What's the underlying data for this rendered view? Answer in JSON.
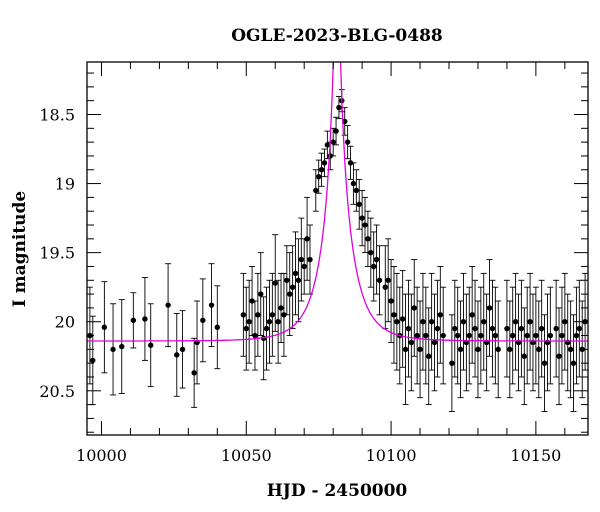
{
  "chart_data": {
    "type": "scatter",
    "title": "OGLE-2023-BLG-0488",
    "xlabel": "HJD - 2450000",
    "ylabel": "I magnitude",
    "xlim": [
      9995,
      10168
    ],
    "ylim": [
      20.82,
      18.12
    ],
    "y_inverted": true,
    "x_ticks": [
      10000,
      10050,
      10100,
      10150
    ],
    "y_ticks": [
      18.5,
      19,
      19.5,
      20,
      20.5
    ],
    "y_tick_labels": [
      "18.5",
      "19",
      "19.5",
      "20",
      "20.5"
    ],
    "colors": {
      "data": "#000000",
      "model": "#e000e0",
      "frame": "#000000"
    },
    "model_curve": {
      "t0": 10081.3,
      "u0": 0.06,
      "tE": 9.5,
      "baseline_mag": 20.14,
      "blend_flux_fraction": 0.08
    },
    "series": [
      {
        "marker": "point-with-errorbar",
        "x": [
          9996.0,
          9997.0,
          10001.0,
          10004.0,
          10007.0,
          10011.0,
          10015.0,
          10017.0,
          10023.0,
          10026.0,
          10028.0,
          10032.0,
          10033.0,
          10035.0,
          10038.0,
          10040.0,
          10049.0,
          10050.0,
          10051.0,
          10052.0,
          10053.0,
          10054.0,
          10055.0,
          10056.0,
          10057.0,
          10058.0,
          10059.0,
          10060.0,
          10061.0,
          10062.0,
          10063.0,
          10064.0,
          10065.0,
          10066.0,
          10067.0,
          10068.0,
          10069.0,
          10070.0,
          10071.0,
          10072.0,
          10074.0,
          10075.0,
          10076.0,
          10077.0,
          10078.0,
          10079.0,
          10080.0,
          10081.0,
          10082.0,
          10083.0,
          10084.0,
          10085.0,
          10086.0,
          10087.0,
          10088.0,
          10089.0,
          10090.0,
          10091.0,
          10092.0,
          10093.0,
          10094.0,
          10095.0,
          10096.0,
          10098.0,
          10099.0,
          10100.0,
          10101.0,
          10102.0,
          10103.0,
          10104.0,
          10105.0,
          10106.0,
          10107.0,
          10108.0,
          10109.0,
          10110.0,
          10111.0,
          10112.0,
          10113.0,
          10114.0,
          10115.0,
          10116.0,
          10117.0,
          10118.0,
          10121.0,
          10122.0,
          10123.0,
          10124.0,
          10125.0,
          10126.0,
          10127.0,
          10128.0,
          10129.0,
          10130.0,
          10131.0,
          10132.0,
          10133.0,
          10134.0,
          10135.0,
          10136.0,
          10137.0,
          10140.0,
          10141.0,
          10142.0,
          10143.0,
          10144.0,
          10145.0,
          10146.0,
          10147.0,
          10148.0,
          10149.0,
          10150.0,
          10151.0,
          10152.0,
          10153.0,
          10154.0,
          10155.0,
          10157.0,
          10158.0,
          10159.0,
          10160.0,
          10161.0,
          10162.0,
          10163.0,
          10164.0,
          10165.0,
          10166.0,
          10167.0
        ],
        "y": [
          20.1,
          20.28,
          20.04,
          20.2,
          20.18,
          19.99,
          19.98,
          20.17,
          19.88,
          20.24,
          20.2,
          20.37,
          20.15,
          19.99,
          19.88,
          20.04,
          19.95,
          20.05,
          20.0,
          19.85,
          20.1,
          19.95,
          19.8,
          20.12,
          20.05,
          20.0,
          19.95,
          19.72,
          20.0,
          19.9,
          19.95,
          19.7,
          19.8,
          19.75,
          19.65,
          19.7,
          19.55,
          19.6,
          19.4,
          19.55,
          19.05,
          18.95,
          18.9,
          18.85,
          18.72,
          18.8,
          18.7,
          18.62,
          18.45,
          18.4,
          18.55,
          18.7,
          18.85,
          19.0,
          19.05,
          19.15,
          19.25,
          19.3,
          19.4,
          19.5,
          19.6,
          19.55,
          19.7,
          19.75,
          19.7,
          19.85,
          19.95,
          20.0,
          20.1,
          19.98,
          20.2,
          20.05,
          20.15,
          19.9,
          20.1,
          20.2,
          20.0,
          20.1,
          20.25,
          20.0,
          20.15,
          20.05,
          19.95,
          20.1,
          20.3,
          20.05,
          20.1,
          20.2,
          20.0,
          20.15,
          20.1,
          19.95,
          20.05,
          20.2,
          20.1,
          20.0,
          20.15,
          19.9,
          20.05,
          20.1,
          20.2,
          20.05,
          20.2,
          20.1,
          20.0,
          20.15,
          20.05,
          20.25,
          20.1,
          20.0,
          20.15,
          20.1,
          20.2,
          20.05,
          20.3,
          20.15,
          20.1,
          20.05,
          20.25,
          20.1,
          20.0,
          20.15,
          20.2,
          20.3,
          20.1,
          20.05,
          20.2,
          20.0
        ],
        "yerr": [
          0.35,
          0.32,
          0.33,
          0.33,
          0.34,
          0.2,
          0.3,
          0.3,
          0.3,
          0.3,
          0.28,
          0.25,
          0.3,
          0.3,
          0.3,
          0.3,
          0.3,
          0.3,
          0.3,
          0.25,
          0.25,
          0.3,
          0.3,
          0.3,
          0.3,
          0.3,
          0.3,
          0.35,
          0.3,
          0.25,
          0.3,
          0.25,
          0.3,
          0.3,
          0.3,
          0.3,
          0.3,
          0.2,
          0.3,
          0.25,
          0.15,
          0.12,
          0.12,
          0.1,
          0.1,
          0.1,
          0.1,
          0.1,
          0.08,
          0.08,
          0.1,
          0.12,
          0.12,
          0.15,
          0.15,
          0.18,
          0.2,
          0.2,
          0.2,
          0.25,
          0.25,
          0.25,
          0.25,
          0.3,
          0.3,
          0.3,
          0.35,
          0.35,
          0.35,
          0.35,
          0.4,
          0.35,
          0.35,
          0.35,
          0.35,
          0.35,
          0.35,
          0.35,
          0.35,
          0.35,
          0.35,
          0.35,
          0.35,
          0.35,
          0.35,
          0.35,
          0.35,
          0.35,
          0.35,
          0.35,
          0.35,
          0.35,
          0.35,
          0.35,
          0.35,
          0.35,
          0.35,
          0.35,
          0.35,
          0.35,
          0.35,
          0.35,
          0.35,
          0.35,
          0.35,
          0.35,
          0.35,
          0.35,
          0.35,
          0.35,
          0.35,
          0.35,
          0.35,
          0.35,
          0.35,
          0.35,
          0.35,
          0.35,
          0.35,
          0.35,
          0.35,
          0.35,
          0.35,
          0.35,
          0.35,
          0.35,
          0.35,
          0.35
        ]
      }
    ]
  }
}
